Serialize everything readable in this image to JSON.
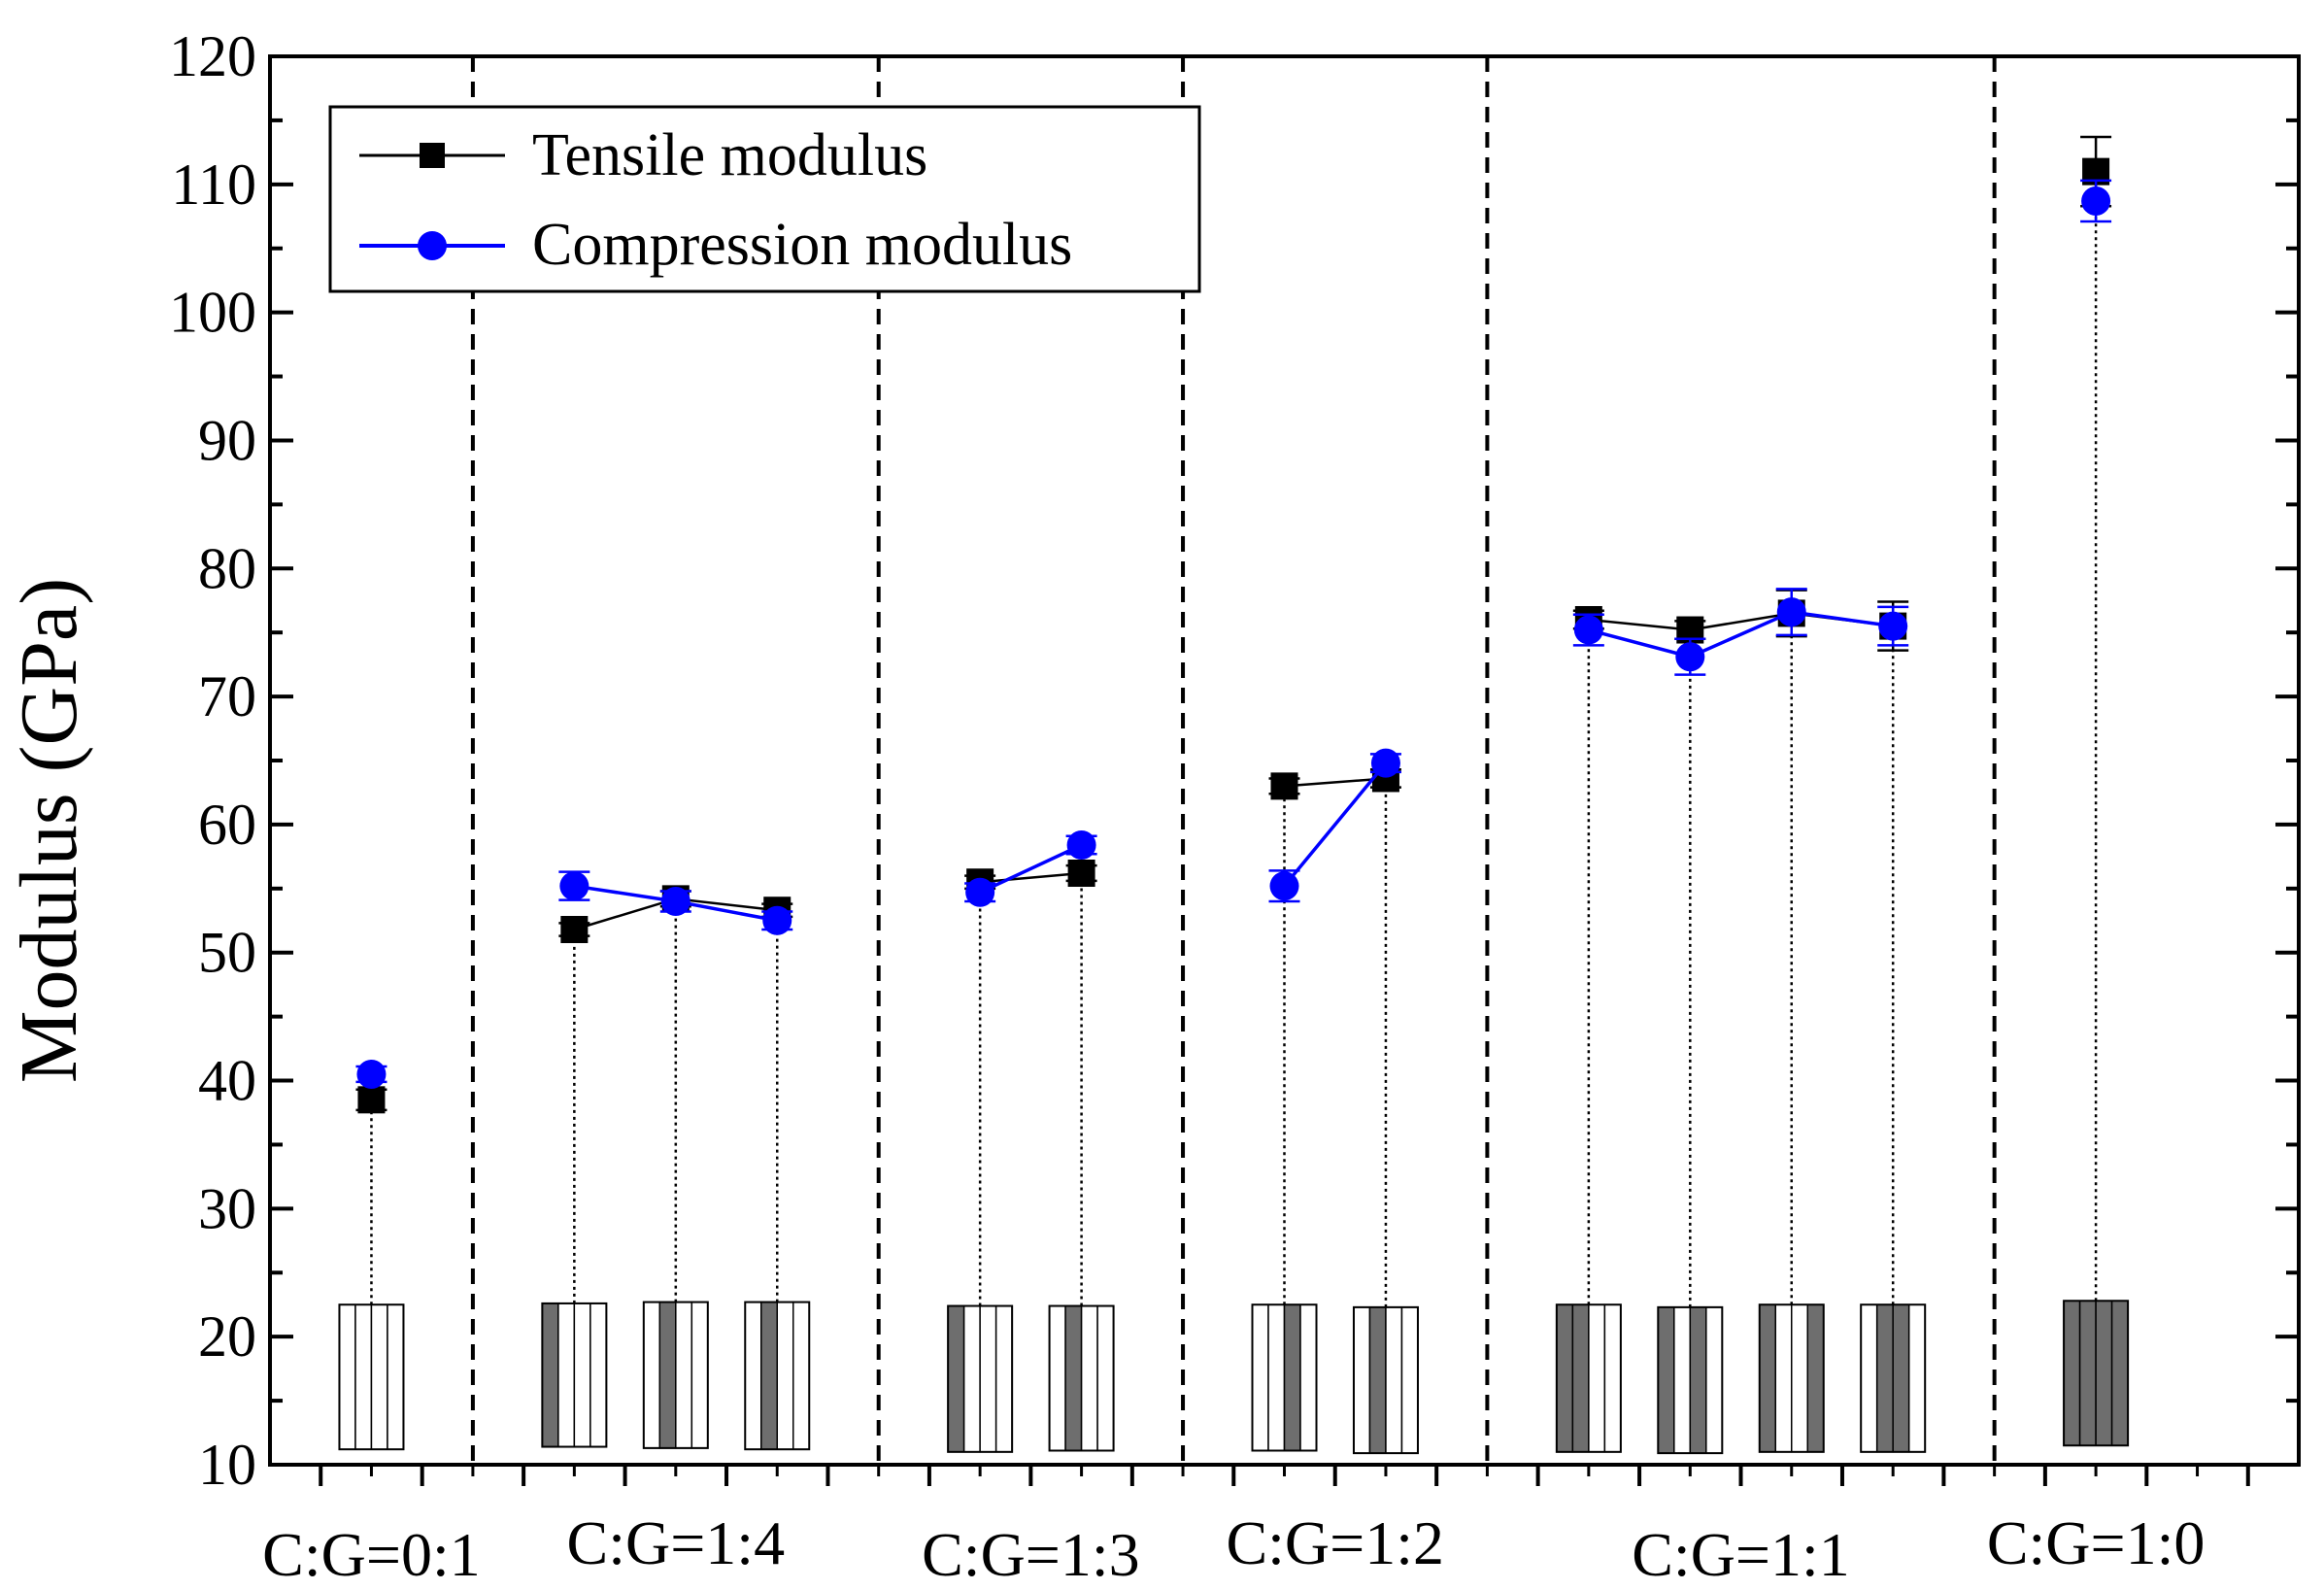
{
  "chart_data": {
    "type": "scatter",
    "title": "",
    "xlabel": "",
    "ylabel": "Modulus (GPa)",
    "ylim": [
      10,
      120
    ],
    "yticks": [
      "10",
      "20",
      "30",
      "40",
      "50",
      "60",
      "70",
      "80",
      "90",
      "100",
      "110",
      "120"
    ],
    "groups": [
      "C:G=0:1",
      "C:G=1:4",
      "C:G=1:3",
      "C:G=1:2",
      "C:G=1:1",
      "C:G=1:0"
    ],
    "series": [
      {
        "name": "Tensile modulus",
        "color": "#000000",
        "marker": "square",
        "points": [
          {
            "x": 1,
            "y": 38.5,
            "err": 0.8,
            "group": 0
          },
          {
            "x": 3,
            "y": 51.8,
            "err": 0.5,
            "group": 1
          },
          {
            "x": 4,
            "y": 54.2,
            "err": 0.6,
            "group": 1
          },
          {
            "x": 5,
            "y": 53.3,
            "err": 0.5,
            "group": 1
          },
          {
            "x": 7,
            "y": 55.5,
            "err": 0.5,
            "group": 2
          },
          {
            "x": 8,
            "y": 56.2,
            "err": 0.6,
            "group": 2
          },
          {
            "x": 10,
            "y": 63.0,
            "err": 0.6,
            "group": 3
          },
          {
            "x": 11,
            "y": 63.6,
            "err": 0.7,
            "group": 3
          },
          {
            "x": 13,
            "y": 76.0,
            "err": 0.7,
            "group": 4
          },
          {
            "x": 14,
            "y": 75.2,
            "err": 0.7,
            "group": 4
          },
          {
            "x": 15,
            "y": 76.5,
            "err": 1.8,
            "group": 4
          },
          {
            "x": 16,
            "y": 75.5,
            "err": 1.9,
            "group": 4
          },
          {
            "x": 18,
            "y": 111.0,
            "err": 2.7,
            "group": 5
          }
        ]
      },
      {
        "name": "Compression modulus",
        "color": "#0000ff",
        "marker": "circle",
        "points": [
          {
            "x": 1,
            "y": 40.5,
            "err": 0.6,
            "group": 0
          },
          {
            "x": 3,
            "y": 55.2,
            "err": 1.1,
            "group": 1
          },
          {
            "x": 4,
            "y": 54.0,
            "err": 0.8,
            "group": 1
          },
          {
            "x": 5,
            "y": 52.5,
            "err": 0.7,
            "group": 1
          },
          {
            "x": 7,
            "y": 54.7,
            "err": 0.7,
            "group": 2
          },
          {
            "x": 8,
            "y": 58.4,
            "err": 0.7,
            "group": 2
          },
          {
            "x": 10,
            "y": 55.2,
            "err": 1.2,
            "group": 3
          },
          {
            "x": 11,
            "y": 64.8,
            "err": 0.7,
            "group": 3
          },
          {
            "x": 13,
            "y": 75.2,
            "err": 1.2,
            "group": 4
          },
          {
            "x": 14,
            "y": 73.1,
            "err": 1.4,
            "group": 4
          },
          {
            "x": 15,
            "y": 76.6,
            "err": 1.8,
            "group": 4
          },
          {
            "x": 16,
            "y": 75.5,
            "err": 1.5,
            "group": 4
          },
          {
            "x": 18,
            "y": 108.7,
            "err": 1.6,
            "group": 5
          }
        ]
      }
    ],
    "layup_icons": [
      {
        "x": 1,
        "pattern": [
          0,
          0,
          0,
          0
        ],
        "ytop": 22.5,
        "ybot": 11.2
      },
      {
        "x": 3,
        "pattern": [
          1,
          0,
          0,
          0
        ],
        "ytop": 22.6,
        "ybot": 11.4
      },
      {
        "x": 4,
        "pattern": [
          0,
          1,
          0,
          0
        ],
        "ytop": 22.7,
        "ybot": 11.3
      },
      {
        "x": 5,
        "pattern": [
          0,
          1,
          0,
          0
        ],
        "ytop": 22.7,
        "ybot": 11.2
      },
      {
        "x": 7,
        "pattern": [
          1,
          0,
          0,
          0
        ],
        "ytop": 22.4,
        "ybot": 11.0
      },
      {
        "x": 8,
        "pattern": [
          0,
          1,
          0,
          0
        ],
        "ytop": 22.4,
        "ybot": 11.1
      },
      {
        "x": 10,
        "pattern": [
          0,
          0,
          1,
          0
        ],
        "ytop": 22.5,
        "ybot": 11.1
      },
      {
        "x": 11,
        "pattern": [
          0,
          1,
          0,
          0
        ],
        "ytop": 22.3,
        "ybot": 10.9
      },
      {
        "x": 13,
        "pattern": [
          1,
          1,
          0,
          0
        ],
        "ytop": 22.5,
        "ybot": 11.0
      },
      {
        "x": 14,
        "pattern": [
          1,
          0,
          1,
          0
        ],
        "ytop": 22.3,
        "ybot": 10.9
      },
      {
        "x": 15,
        "pattern": [
          1,
          0,
          0,
          1
        ],
        "ytop": 22.5,
        "ybot": 11.0
      },
      {
        "x": 16,
        "pattern": [
          0,
          1,
          1,
          0
        ],
        "ytop": 22.5,
        "ybot": 11.0
      },
      {
        "x": 18,
        "pattern": [
          1,
          1,
          1,
          1
        ],
        "ytop": 22.8,
        "ybot": 11.5
      }
    ],
    "legend": {
      "position": "top-left",
      "entries": [
        "Tensile modulus",
        "Compression modulus"
      ]
    },
    "grid": false
  }
}
